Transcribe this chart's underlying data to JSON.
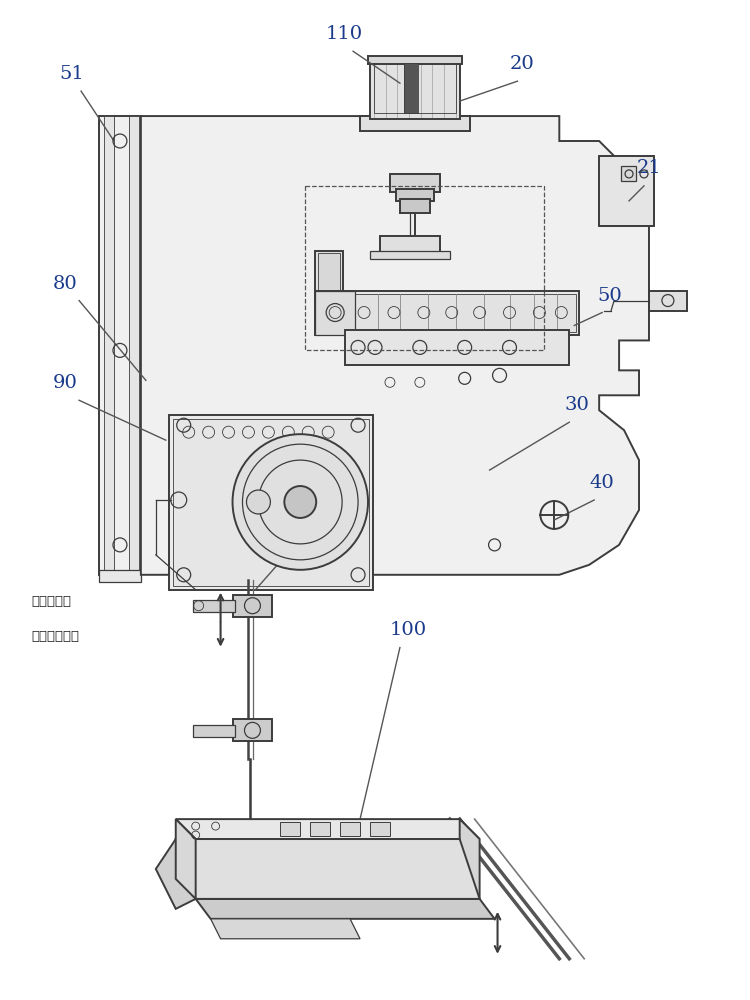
{
  "bg_color": "#ffffff",
  "lc": "#3c3c3c",
  "lc2": "#666666",
  "label_color": "#1a3a8a",
  "figsize": [
    7.5,
    10.0
  ],
  "dpi": 100,
  "text_up": "向上抬压脚",
  "text_down": "向下电机转动",
  "lw_main": 1.4,
  "lw_thin": 0.9,
  "lw_fine": 0.6
}
